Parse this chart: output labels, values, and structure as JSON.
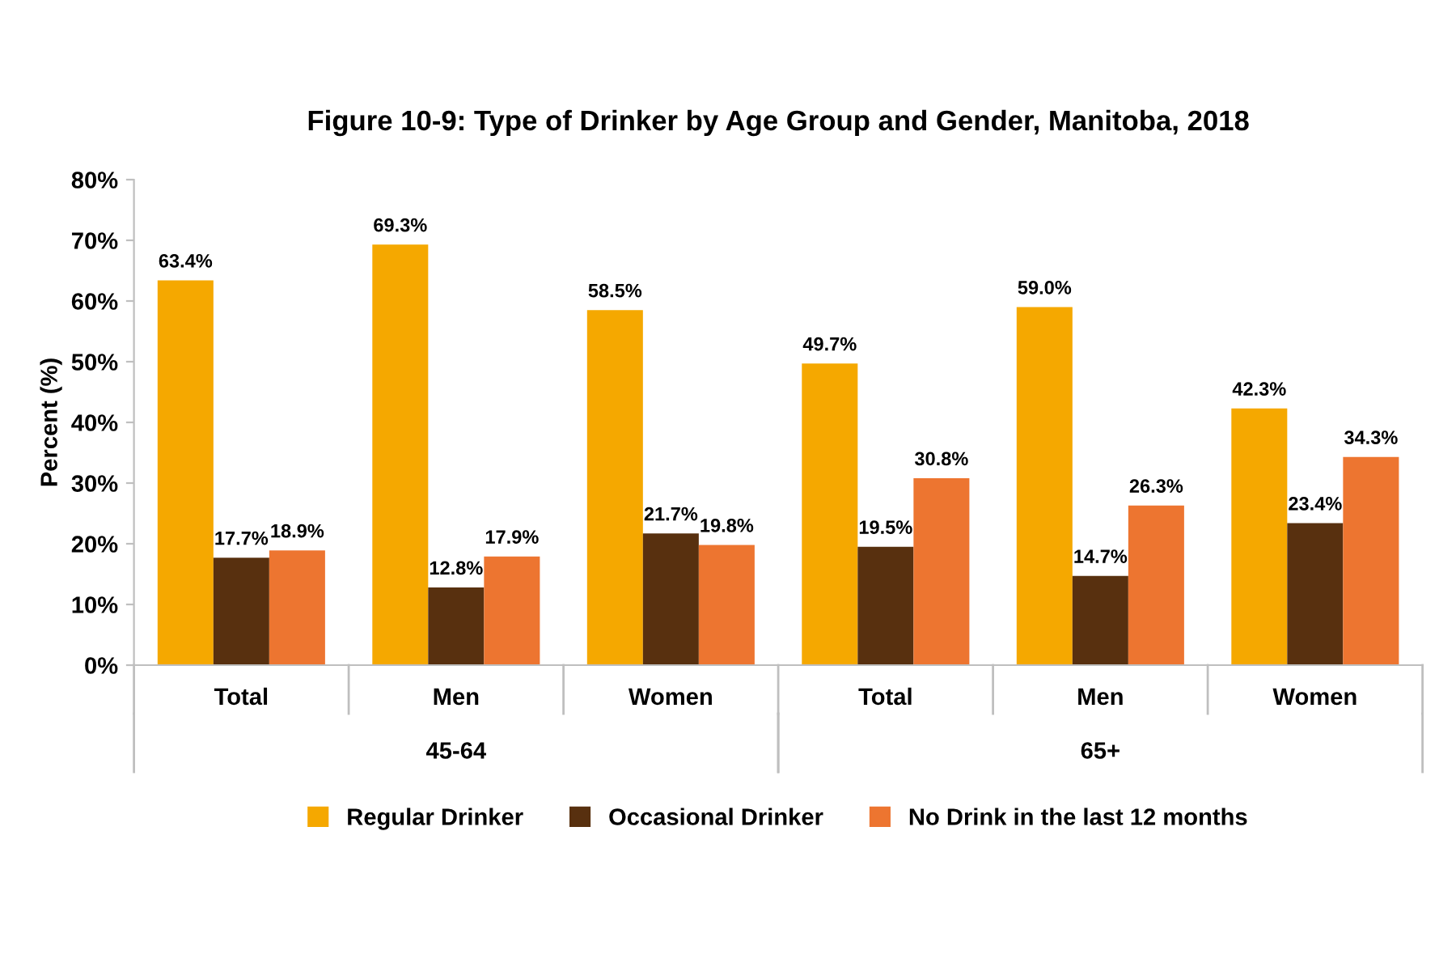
{
  "chart_data": {
    "type": "bar",
    "title": "Figure 10-9: Type of Drinker by Age Group and Gender, Manitoba, 2018",
    "ylabel": "Percent (%)",
    "categories": [
      "Total",
      "Men",
      "Women",
      "Total",
      "Men",
      "Women"
    ],
    "series": [
      {
        "name": "Regular Drinker",
        "color": "#f5a800",
        "values": [
          63.4,
          69.3,
          58.5,
          49.7,
          59.0,
          42.3
        ],
        "value_labels": [
          "63.4%",
          "69.3%",
          "58.5%",
          "49.7%",
          "59.0%",
          "42.3%"
        ]
      },
      {
        "name": "Occasional Drinker",
        "color": "#58300f",
        "values": [
          17.7,
          12.8,
          21.7,
          19.5,
          14.7,
          23.4
        ],
        "value_labels": [
          "17.7%",
          "12.8%",
          "21.7%",
          "19.5%",
          "14.7%",
          "23.4%"
        ]
      },
      {
        "name": "No Drink in the last 12 months",
        "color": "#ed7530",
        "values": [
          18.9,
          17.9,
          19.8,
          30.8,
          26.3,
          34.3
        ],
        "value_labels": [
          "18.9%",
          "17.9%",
          "19.8%",
          "30.8%",
          "26.3%",
          "34.3%"
        ]
      }
    ],
    "annotations": [
      "45-64",
      "65+"
    ],
    "ylim": [
      0,
      80
    ],
    "yticks": [
      {
        "value": 0,
        "label": "0%"
      },
      {
        "value": 10,
        "label": "10%"
      },
      {
        "value": 20,
        "label": "20%"
      },
      {
        "value": 30,
        "label": "30%"
      },
      {
        "value": 40,
        "label": "40%"
      },
      {
        "value": 50,
        "label": "50%"
      },
      {
        "value": 60,
        "label": "60%"
      },
      {
        "value": 70,
        "label": "70%"
      },
      {
        "value": 80,
        "label": "80%"
      }
    ],
    "grid": false,
    "legend": "bottom"
  }
}
